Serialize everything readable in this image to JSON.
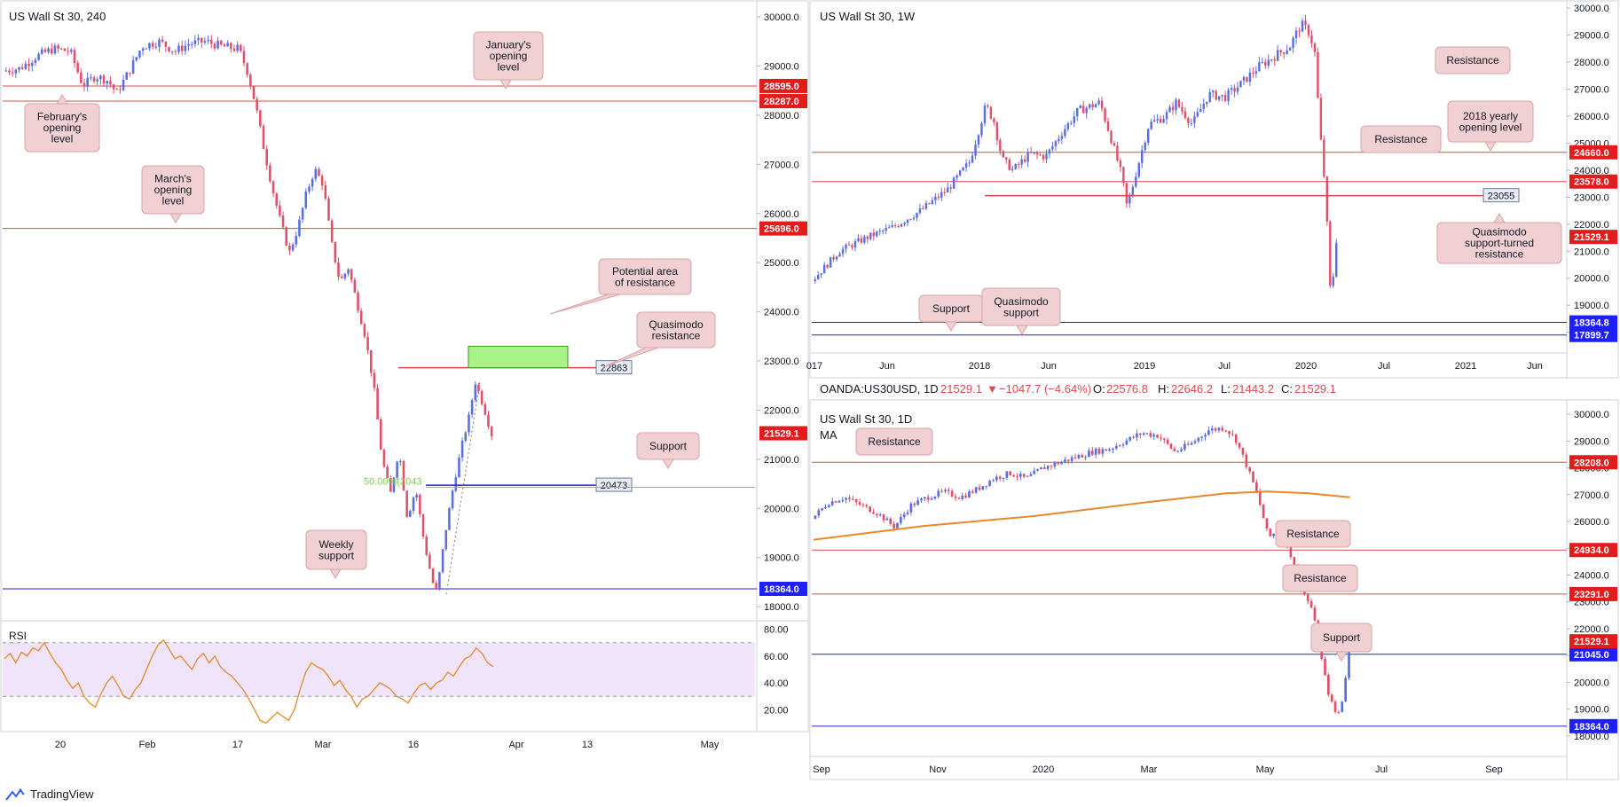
{
  "colors": {
    "up": "#5b6ee0",
    "down": "#e0506a",
    "resistance": "#d94b4b",
    "support": "#2222cc",
    "label_red": "#e31b1b",
    "label_blue": "#1e1eff",
    "callout_bg": "#f0d0d2",
    "callout_border": "#d9a3a7",
    "zone": "#a9f28a",
    "fib": "#7bd04c",
    "ma": "#e5892b",
    "rsi_line": "#e5892b",
    "rsi_band": "#f0e4fb"
  },
  "footer": {
    "brand": "TradingView"
  },
  "chart_data": [
    {
      "id": "panel-4h",
      "type": "candlestick",
      "title": "US Wall St 30, 240",
      "x_ticks": [
        "20",
        "Feb",
        "17",
        "Mar",
        "16",
        "Apr",
        "13",
        "May"
      ],
      "y_ticks": [
        "30000.0",
        "29000.0",
        "28000.0",
        "27000.0",
        "26000.0",
        "25000.0",
        "24000.0",
        "23000.0",
        "22000.0",
        "21000.0",
        "20000.0",
        "19000.0",
        "18000.0"
      ],
      "ylim": [
        17750,
        30200
      ],
      "price_path": [
        [
          0,
          28900
        ],
        [
          4,
          28950
        ],
        [
          8,
          29200
        ],
        [
          12,
          29350
        ],
        [
          16,
          29300
        ],
        [
          19,
          28600
        ],
        [
          22,
          28800
        ],
        [
          25,
          28700
        ],
        [
          27,
          28450
        ],
        [
          30,
          28900
        ],
        [
          33,
          29400
        ],
        [
          37,
          29500
        ],
        [
          41,
          29300
        ],
        [
          44,
          29450
        ],
        [
          48,
          29500
        ],
        [
          52,
          29400
        ],
        [
          56,
          29350
        ],
        [
          58,
          28900
        ],
        [
          60,
          28200
        ],
        [
          62,
          27300
        ],
        [
          64,
          26500
        ],
        [
          66,
          25800
        ],
        [
          68,
          25200
        ],
        [
          70,
          25700
        ],
        [
          72,
          26400
        ],
        [
          74,
          26900
        ],
        [
          76,
          26600
        ],
        [
          78,
          25400
        ],
        [
          80,
          24600
        ],
        [
          82,
          24900
        ],
        [
          84,
          24200
        ],
        [
          86,
          23500
        ],
        [
          88,
          22500
        ],
        [
          90,
          21000
        ],
        [
          92,
          20300
        ],
        [
          94,
          21200
        ],
        [
          96,
          19800
        ],
        [
          98,
          20400
        ],
        [
          100,
          19300
        ],
        [
          102,
          18500
        ],
        [
          103,
          18300
        ],
        [
          105,
          19500
        ],
        [
          107,
          20500
        ],
        [
          109,
          21300
        ],
        [
          111,
          22000
        ],
        [
          112,
          22600
        ],
        [
          114,
          22100
        ],
        [
          116,
          21500
        ]
      ],
      "x_span": [
        0,
        170
      ],
      "levels": [
        {
          "value": 28595.0,
          "label": "28595.0",
          "color": "resistance"
        },
        {
          "value": 28287.0,
          "label": "28287.0",
          "color": "resistance"
        },
        {
          "value": 25696.0,
          "label": "25696.0",
          "color": "resistance"
        },
        {
          "value": 18364.0,
          "label": "18364.0",
          "color": "support"
        }
      ],
      "current_price": {
        "value": 21529.1,
        "label": "21529.1"
      },
      "horizontal_rays": [
        {
          "value": 22863,
          "label": "22863",
          "color": "resistance"
        },
        {
          "value": 20473,
          "label": "20473",
          "color": "support"
        }
      ],
      "fib_line": {
        "value": 20430,
        "label": "50.00%(2043"
      },
      "zone": {
        "low": 22863,
        "high": 23300
      },
      "annotations": [
        "January's opening level",
        "February's opening level",
        "March's opening level",
        "Potential area of resistance",
        "Quasimodo resistance",
        "Support",
        "Weekly support"
      ],
      "rsi": {
        "label": "RSI",
        "y_ticks": [
          "80.00",
          "60.00",
          "40.00",
          "20.00"
        ],
        "band": [
          30,
          70
        ],
        "values": [
          58,
          62,
          55,
          63,
          60,
          66,
          64,
          70,
          62,
          55,
          50,
          42,
          36,
          40,
          30,
          25,
          22,
          32,
          40,
          45,
          38,
          30,
          28,
          35,
          40,
          50,
          60,
          68,
          72,
          65,
          58,
          60,
          55,
          50,
          58,
          62,
          55,
          60,
          52,
          48,
          45,
          40,
          35,
          28,
          20,
          12,
          10,
          14,
          18,
          15,
          12,
          20,
          35,
          48,
          55,
          52,
          50,
          45,
          38,
          42,
          35,
          30,
          22,
          28,
          30,
          35,
          40,
          38,
          35,
          30,
          28,
          25,
          32,
          38,
          40,
          35,
          40,
          42,
          48,
          45,
          52,
          58,
          60,
          66,
          62,
          55,
          52
        ]
      }
    },
    {
      "id": "panel-1w",
      "type": "candlestick",
      "title": "US Wall St 30, 1W",
      "x_ticks": [
        "017",
        "Jun",
        "2018",
        "Jun",
        "2019",
        "Jul",
        "2020",
        "Jul",
        "2021",
        "Jun"
      ],
      "y_ticks": [
        "30000.0",
        "29000.0",
        "28000.0",
        "27000.0",
        "26000.0",
        "25000.0",
        "24000.0",
        "23000.0",
        "22000.0",
        "21000.0",
        "20000.0",
        "19000.0",
        "18000.0"
      ],
      "ylim": [
        17300,
        30100
      ],
      "price_path": [
        [
          0,
          19900
        ],
        [
          10,
          21000
        ],
        [
          20,
          21500
        ],
        [
          30,
          21900
        ],
        [
          40,
          22500
        ],
        [
          50,
          23300
        ],
        [
          58,
          24300
        ],
        [
          64,
          26400
        ],
        [
          67,
          25800
        ],
        [
          70,
          24400
        ],
        [
          74,
          24000
        ],
        [
          80,
          24600
        ],
        [
          86,
          24500
        ],
        [
          92,
          25400
        ],
        [
          98,
          26200
        ],
        [
          106,
          26500
        ],
        [
          110,
          25200
        ],
        [
          114,
          23800
        ],
        [
          116,
          22600
        ],
        [
          119,
          23800
        ],
        [
          124,
          25700
        ],
        [
          130,
          26000
        ],
        [
          134,
          26500
        ],
        [
          140,
          25700
        ],
        [
          146,
          26800
        ],
        [
          152,
          26700
        ],
        [
          158,
          27200
        ],
        [
          164,
          27800
        ],
        [
          170,
          28200
        ],
        [
          176,
          28600
        ],
        [
          180,
          29400
        ],
        [
          183,
          29100
        ],
        [
          185,
          28400
        ],
        [
          187,
          25400
        ],
        [
          189,
          23200
        ],
        [
          191,
          19100
        ],
        [
          193,
          21400
        ]
      ],
      "x_span": [
        0,
        260
      ],
      "levels": [
        {
          "value": 24660.0,
          "label": "24660.0",
          "color": "resistance"
        },
        {
          "value": 23578.0,
          "label": "23578.0",
          "color": "resistance"
        },
        {
          "value": 18364.8,
          "label": "18364.8",
          "color": "support"
        },
        {
          "value": 17899.7,
          "label": "17899.7",
          "color": "support"
        }
      ],
      "current_price": {
        "value": 21529.1,
        "label": "21529.1"
      },
      "horizontal_rays": [
        {
          "value": 23055,
          "label": "23055",
          "color": "resistance"
        }
      ],
      "annotations": [
        "Resistance",
        "2018 yearly opening level",
        "Resistance",
        "Quasimodo support-turned resistance",
        "Support",
        "Quasimodo support"
      ]
    },
    {
      "id": "panel-1d",
      "type": "candlestick",
      "title": "US Wall St 30, 1D",
      "legend": {
        "symbol": "OANDA:US30USD, 1D",
        "last": "21529.1",
        "change": "−1047.7 (−4.64%)",
        "open": "22576.8",
        "high": "22646.2",
        "low": "21443.2",
        "close": "21529.1",
        "ma_label": "MA"
      },
      "x_ticks": [
        "Sep",
        "Nov",
        "2020",
        "Mar",
        "May",
        "Jul",
        "Sep"
      ],
      "y_ticks": [
        "30000.0",
        "29000.0",
        "28000.0",
        "27000.0",
        "26000.0",
        "25000.0",
        "24000.0",
        "23000.0",
        "22000.0",
        "21000.0",
        "20000.0",
        "19000.0",
        "18000.0"
      ],
      "ylim": [
        17300,
        30400
      ],
      "price_path": [
        [
          0,
          26100
        ],
        [
          6,
          26700
        ],
        [
          12,
          26900
        ],
        [
          18,
          26600
        ],
        [
          24,
          26300
        ],
        [
          30,
          25800
        ],
        [
          36,
          26600
        ],
        [
          42,
          26900
        ],
        [
          48,
          27100
        ],
        [
          54,
          26900
        ],
        [
          60,
          27200
        ],
        [
          66,
          27600
        ],
        [
          72,
          27800
        ],
        [
          78,
          27600
        ],
        [
          84,
          28000
        ],
        [
          90,
          28200
        ],
        [
          96,
          28400
        ],
        [
          102,
          28600
        ],
        [
          108,
          28700
        ],
        [
          114,
          29000
        ],
        [
          120,
          29300
        ],
        [
          126,
          29200
        ],
        [
          132,
          28600
        ],
        [
          138,
          28900
        ],
        [
          144,
          29400
        ],
        [
          150,
          29500
        ],
        [
          154,
          29100
        ],
        [
          158,
          28100
        ],
        [
          162,
          27000
        ],
        [
          166,
          25400
        ],
        [
          170,
          25700
        ],
        [
          174,
          24800
        ],
        [
          178,
          23500
        ],
        [
          182,
          22700
        ],
        [
          185,
          21000
        ],
        [
          188,
          19500
        ],
        [
          191,
          18700
        ],
        [
          193,
          19400
        ],
        [
          195,
          21000
        ],
        [
          197,
          22500
        ],
        [
          199,
          21500
        ]
      ],
      "x_span": [
        0,
        360
      ],
      "ma_path": [
        [
          0,
          25320
        ],
        [
          40,
          25830
        ],
        [
          80,
          26200
        ],
        [
          120,
          26700
        ],
        [
          150,
          27050
        ],
        [
          165,
          27120
        ],
        [
          180,
          27050
        ],
        [
          195,
          26900
        ]
      ],
      "levels": [
        {
          "value": 28208.0,
          "label": "28208.0",
          "color": "resistance"
        },
        {
          "value": 24934.0,
          "label": "24934.0",
          "color": "resistance"
        },
        {
          "value": 23291.0,
          "label": "23291.0",
          "color": "resistance"
        },
        {
          "value": 21045.0,
          "label": "21045.0",
          "color": "support"
        },
        {
          "value": 18364.0,
          "label": "18364.0",
          "color": "support"
        }
      ],
      "current_price": {
        "value": 21529.1,
        "label": "21529.1"
      },
      "annotations": [
        "Resistance",
        "Resistance",
        "Resistance",
        "Support"
      ]
    }
  ]
}
